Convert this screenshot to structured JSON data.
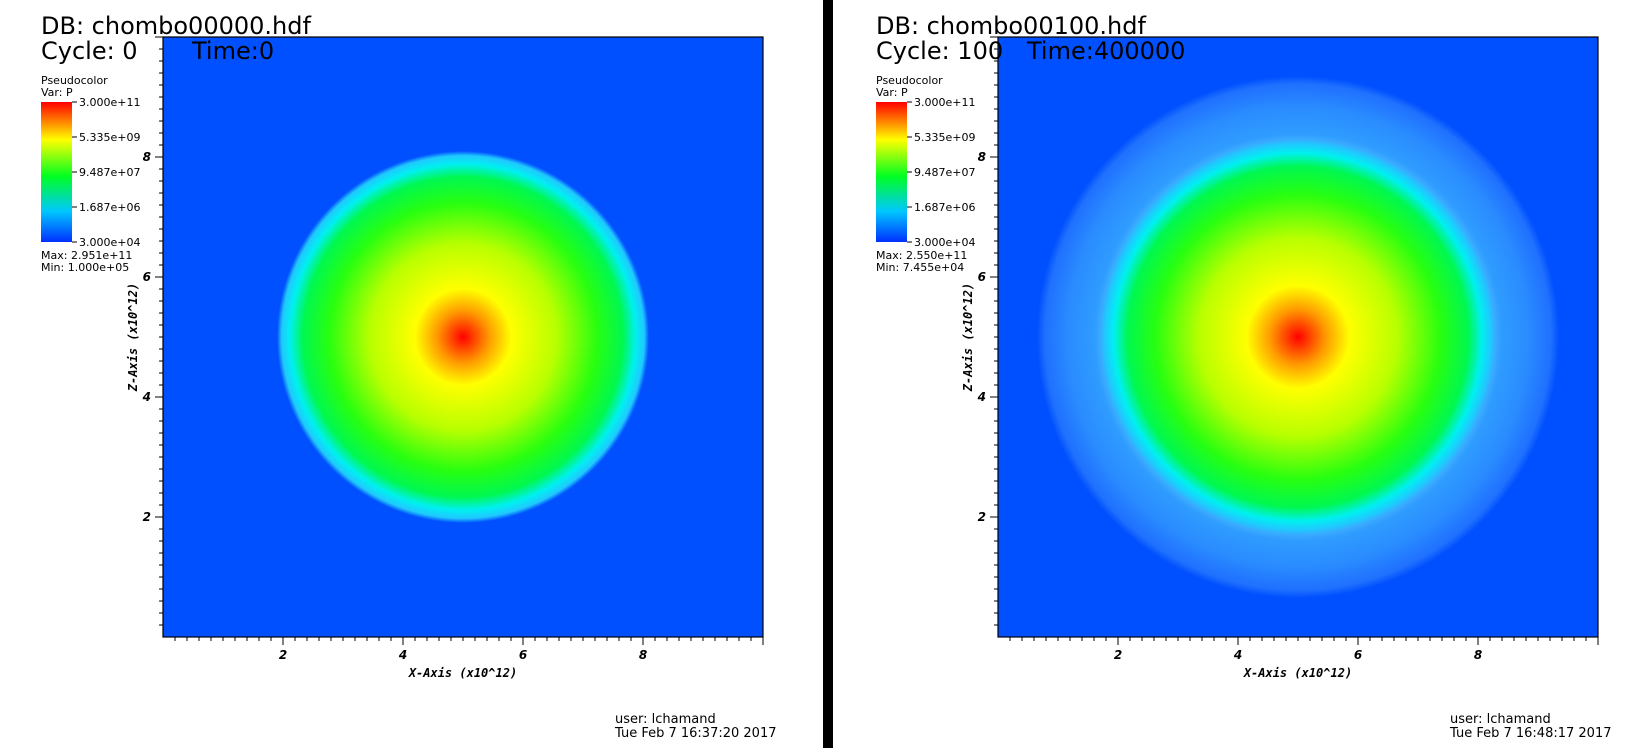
{
  "chart_data": [
    {
      "type": "heatmap",
      "title": "DB: chombo00000.hdf",
      "cycle_label": "Cycle: 0",
      "time_label": "Time:0",
      "legend": {
        "plot_type": "Pseudocolor",
        "variable": "Var: P",
        "scale": "log",
        "ticks": [
          "3.000e+11",
          "5.335e+09",
          "9.487e+07",
          "1.687e+06",
          "3.000e+04"
        ],
        "max_label": "Max:  2.951e+11",
        "min_label": "Min:  1.000e+05"
      },
      "xlabel": "X-Axis (x10^12)",
      "ylabel": "Z-Axis (x10^12)",
      "xlim": [
        0,
        10
      ],
      "ylim": [
        0,
        10
      ],
      "xticks": [
        "2",
        "4",
        "6",
        "8"
      ],
      "yticks": [
        "2",
        "4",
        "6",
        "8"
      ],
      "field": {
        "center": [
          5,
          5
        ],
        "background_value": 100000,
        "peak_value": 295100000000,
        "inner_shell_radius": 3.1,
        "outer_shell_radius": null
      },
      "user": "user: lchamand",
      "timestamp": "Tue Feb  7 16:37:20 2017"
    },
    {
      "type": "heatmap",
      "title": "DB: chombo00100.hdf",
      "cycle_label": "Cycle: 100",
      "time_label": "Time:400000",
      "legend": {
        "plot_type": "Pseudocolor",
        "variable": "Var: P",
        "scale": "log",
        "ticks": [
          "3.000e+11",
          "5.335e+09",
          "9.487e+07",
          "1.687e+06",
          "3.000e+04"
        ],
        "max_label": "Max:  2.550e+11",
        "min_label": "Min:  7.455e+04"
      },
      "xlabel": "X-Axis (x10^12)",
      "ylabel": "Z-Axis (x10^12)",
      "xlim": [
        0,
        10
      ],
      "ylim": [
        0,
        10
      ],
      "xticks": [
        "2",
        "4",
        "6",
        "8"
      ],
      "yticks": [
        "2",
        "4",
        "6",
        "8"
      ],
      "field": {
        "center": [
          5,
          5
        ],
        "background_value": 74550,
        "peak_value": 255000000000,
        "inner_shell_radius": 3.3,
        "outer_shell_radius": 4.35
      },
      "user": "user: lchamand",
      "timestamp": "Tue Feb  7 16:48:17 2017"
    }
  ]
}
